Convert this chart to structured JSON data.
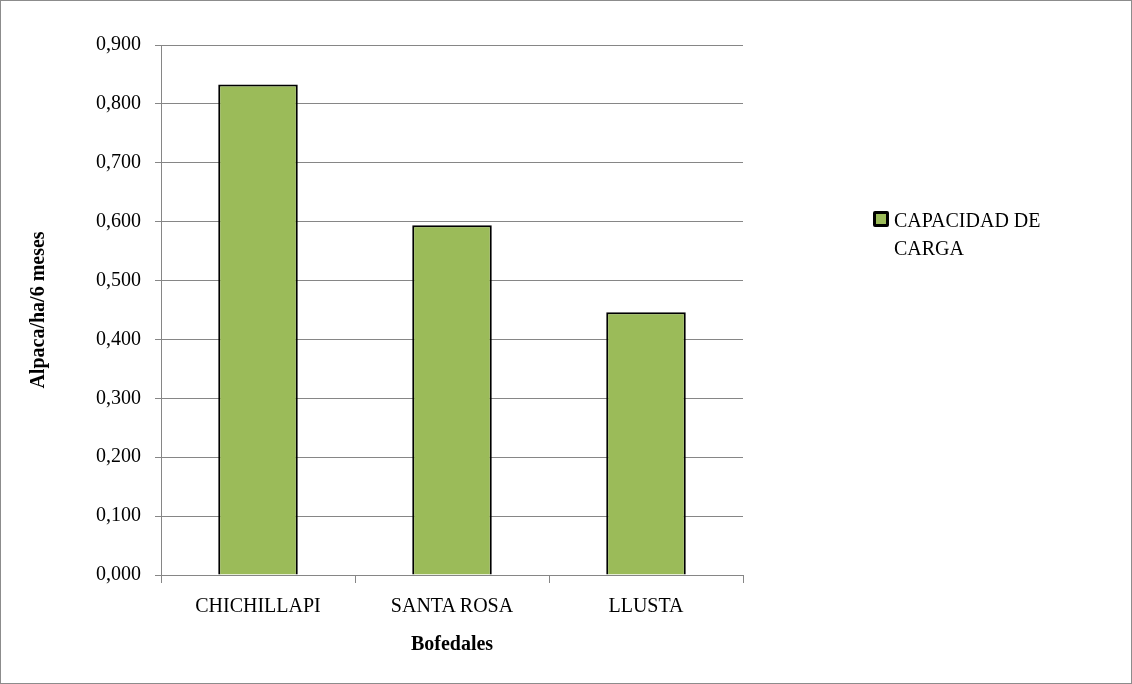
{
  "chart_data": {
    "type": "bar",
    "xlabel": "Bofedales",
    "ylabel": "Alpaca/ha/6 meses",
    "categories": [
      "CHICHILLAPI",
      "SANTA ROSA",
      "LLUSTA"
    ],
    "series": [
      {
        "name": "CAPACIDAD DE CARGA",
        "color": "#9bbb59",
        "values": [
          0.833,
          0.594,
          0.446
        ]
      }
    ],
    "ylim": [
      0,
      0.9
    ],
    "yticks": [
      {
        "value": 0,
        "label": "0,000"
      },
      {
        "value": 0.1,
        "label": "0,100"
      },
      {
        "value": 0.2,
        "label": "0,200"
      },
      {
        "value": 0.3,
        "label": "0,300"
      },
      {
        "value": 0.4,
        "label": "0,400"
      },
      {
        "value": 0.5,
        "label": "0,500"
      },
      {
        "value": 0.6,
        "label": "0,600"
      },
      {
        "value": 0.7,
        "label": "0,700"
      },
      {
        "value": 0.8,
        "label": "0,800"
      },
      {
        "value": 0.9,
        "label": "0,900"
      }
    ],
    "grid": "y",
    "legend": "right"
  }
}
